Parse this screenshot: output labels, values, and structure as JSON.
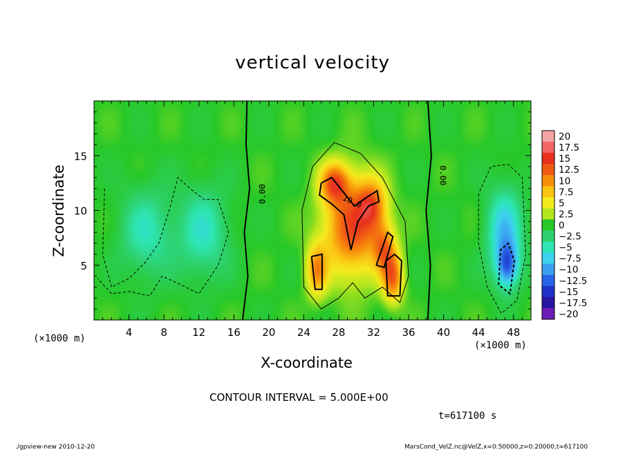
{
  "chart_data": {
    "type": "heatmap",
    "title": "vertical velocity",
    "xlabel": "X-coordinate",
    "ylabel": "Z-coordinate",
    "x_unit_label": "(×1000 m)",
    "xlim": [
      0,
      50
    ],
    "ylim": [
      0,
      20
    ],
    "x_ticks": [
      "4",
      "8",
      "12",
      "16",
      "20",
      "24",
      "28",
      "32",
      "36",
      "40",
      "44",
      "48"
    ],
    "y_ticks": [
      "5",
      "10",
      "15"
    ],
    "colorbar_labels": [
      "20",
      "17.5",
      "15",
      "12.5",
      "10",
      "7.5",
      "5",
      "2.5",
      "0",
      "−2.5",
      "−5",
      "−7.5",
      "−10",
      "−12.5",
      "−15",
      "−17.5",
      "−20"
    ],
    "colorbar_colors": [
      "#f4a3a3",
      "#f06464",
      "#e8301e",
      "#f05a14",
      "#f78c0a",
      "#fbc314",
      "#f4eb1e",
      "#b4e61e",
      "#28c828",
      "#2dd26e",
      "#2ee6b4",
      "#3cd2f0",
      "#3ca0f0",
      "#2864e6",
      "#1e32c8",
      "#2814a0",
      "#6e1eb4"
    ],
    "contour_labels": [
      "0.00",
      "0.00",
      "10.0"
    ],
    "contour_interval": 5.0,
    "field_features": [
      {
        "x": 29.5,
        "z": 8.5,
        "value": 13,
        "sx": 3.2,
        "sz": 4.5
      },
      {
        "x": 27.5,
        "z": 12.5,
        "value": 11,
        "sx": 1.6,
        "sz": 1.8
      },
      {
        "x": 31.8,
        "z": 10.5,
        "value": 9,
        "sx": 1.6,
        "sz": 2.2
      },
      {
        "x": 25.5,
        "z": 4.5,
        "value": 9,
        "sx": 1.2,
        "sz": 2.4
      },
      {
        "x": 33.2,
        "z": 6.5,
        "value": 9,
        "sx": 1.3,
        "sz": 2.2
      },
      {
        "x": 34.2,
        "z": 3.8,
        "value": 11,
        "sx": 1.2,
        "sz": 2.2
      },
      {
        "x": 6,
        "z": 8,
        "value": -5,
        "sx": 3,
        "sz": 4
      },
      {
        "x": 12.5,
        "z": 8,
        "value": -5.5,
        "sx": 2.8,
        "sz": 4
      },
      {
        "x": 47,
        "z": 8,
        "value": -8,
        "sx": 2,
        "sz": 4
      },
      {
        "x": 47.3,
        "z": 5,
        "value": -10,
        "sx": 1.2,
        "sz": 2
      }
    ]
  },
  "annotations": {
    "contour_interval_text": "CONTOUR INTERVAL = 5.000E+00",
    "time_text": "t=617100 s",
    "footer_left": "./gpview-new  2010-12-20",
    "footer_right": "MarsCond_VelZ.nc@VelZ,x=0:50000,z=0:20000,t=617100"
  }
}
